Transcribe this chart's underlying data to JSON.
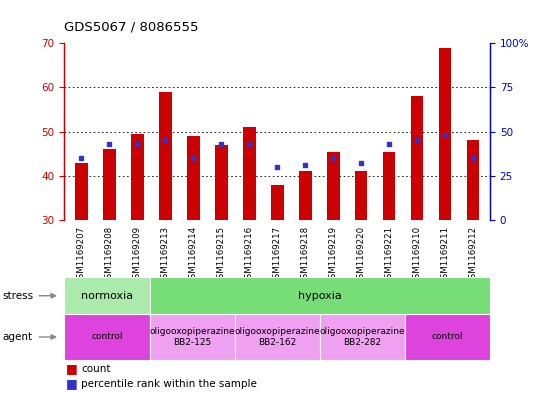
{
  "title": "GDS5067 / 8086555",
  "samples": [
    "GSM1169207",
    "GSM1169208",
    "GSM1169209",
    "GSM1169213",
    "GSM1169214",
    "GSM1169215",
    "GSM1169216",
    "GSM1169217",
    "GSM1169218",
    "GSM1169219",
    "GSM1169220",
    "GSM1169221",
    "GSM1169210",
    "GSM1169211",
    "GSM1169212"
  ],
  "counts": [
    43,
    46,
    49.5,
    59,
    49,
    47,
    51,
    38,
    41,
    45.5,
    41,
    45.5,
    58,
    69,
    48
  ],
  "percentile_ranks_pct": [
    35,
    43,
    43,
    45,
    35,
    43,
    43,
    30,
    31,
    35,
    32,
    43,
    45,
    48,
    35
  ],
  "ymin": 30,
  "ymax": 70,
  "yticks_left": [
    30,
    40,
    50,
    60,
    70
  ],
  "yticks_right": [
    0,
    25,
    50,
    75,
    100
  ],
  "bar_color": "#cc0000",
  "dot_color": "#3333cc",
  "stress_groups": [
    {
      "label": "normoxia",
      "start": 0,
      "end": 3,
      "color": "#aaeaaa"
    },
    {
      "label": "hypoxia",
      "start": 3,
      "end": 15,
      "color": "#77dd77"
    }
  ],
  "agent_groups": [
    {
      "label": "control",
      "start": 0,
      "end": 3,
      "color": "#dd44dd"
    },
    {
      "label": "oligooxopiperazine\nBB2-125",
      "start": 3,
      "end": 6,
      "color": "#f0a0f0"
    },
    {
      "label": "oligooxopiperazine\nBB2-162",
      "start": 6,
      "end": 9,
      "color": "#f0a0f0"
    },
    {
      "label": "oligooxopiperazine\nBB2-282",
      "start": 9,
      "end": 12,
      "color": "#f0a0f0"
    },
    {
      "label": "control",
      "start": 12,
      "end": 15,
      "color": "#dd44dd"
    }
  ],
  "bg_color": "#ffffff"
}
